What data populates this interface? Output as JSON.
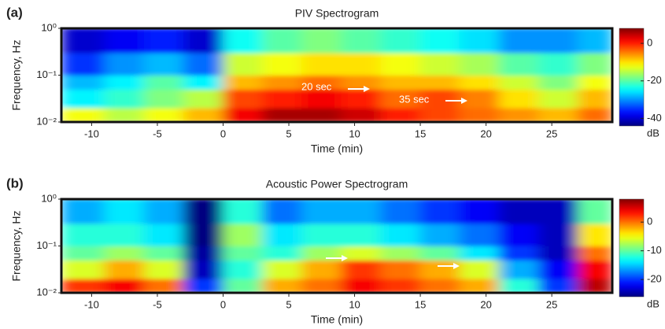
{
  "chart_data": [
    {
      "type": "heatmap",
      "panel_label": "(a)",
      "title": "PIV Spectrogram",
      "x_label": "Time (min)",
      "y_label": "Frequency, Hz",
      "xlim": [
        -12.3,
        29.6
      ],
      "xticks": [
        -10,
        -5,
        0,
        5,
        10,
        15,
        20,
        25
      ],
      "ylim": [
        0.01,
        1
      ],
      "y_scale": "log",
      "yticks": [
        {
          "value": 0.01,
          "label": "10⁻²"
        },
        {
          "value": 0.1,
          "label": "10⁻¹"
        },
        {
          "value": 1,
          "label": "10⁰"
        }
      ],
      "time_bins": [
        -12.3,
        -9,
        -6,
        -3,
        0,
        3,
        6,
        9,
        12,
        15,
        18,
        21,
        24,
        27,
        29.6
      ],
      "freq_bins": [
        0.01,
        0.02,
        0.05,
        0.1,
        0.3,
        1
      ],
      "z": [
        [
          -12,
          -15,
          -12,
          -8,
          2,
          6,
          6,
          4,
          0,
          -2,
          -4,
          -6,
          -8,
          -4
        ],
        [
          -25,
          -22,
          -18,
          -15,
          -2,
          0,
          2,
          0,
          -4,
          -2,
          -5,
          -10,
          -14,
          -8
        ],
        [
          -28,
          -25,
          -20,
          -25,
          -8,
          -6,
          -4,
          -6,
          -8,
          -8,
          -10,
          -14,
          -18,
          -12
        ],
        [
          -35,
          -30,
          -28,
          -32,
          -14,
          -12,
          -10,
          -10,
          -12,
          -14,
          -16,
          -20,
          -22,
          -18
        ],
        [
          -40,
          -38,
          -36,
          -40,
          -24,
          -20,
          -18,
          -20,
          -22,
          -24,
          -26,
          -30,
          -30,
          -28
        ]
      ],
      "colormap": "jet",
      "clim": [
        -44,
        8
      ],
      "colorbar_ticks": [
        0,
        -20,
        -40
      ],
      "colorbar_label": "dB",
      "annotations": [
        "20 sec",
        "35 sec"
      ]
    },
    {
      "type": "heatmap",
      "panel_label": "(b)",
      "title": "Acoustic Power Spectrogram",
      "x_label": "Time (min)",
      "y_label": "Frequency, Hz",
      "xlim": [
        -12.3,
        29.6
      ],
      "xticks": [
        -10,
        -5,
        0,
        5,
        10,
        15,
        20,
        25
      ],
      "ylim": [
        0.01,
        1
      ],
      "y_scale": "log",
      "yticks": [
        {
          "value": 0.01,
          "label": "10⁻²"
        },
        {
          "value": 0.1,
          "label": "10⁻¹"
        },
        {
          "value": 1,
          "label": "10⁰"
        }
      ],
      "time_bins": [
        -12.3,
        -9,
        -6,
        -3,
        0,
        3,
        6,
        9,
        12,
        15,
        18,
        21,
        24,
        27,
        29.6
      ],
      "freq_bins": [
        0.01,
        0.02,
        0.05,
        0.1,
        0.3,
        1
      ],
      "z": [
        [
          2,
          4,
          0,
          -20,
          -10,
          -2,
          0,
          4,
          2,
          0,
          -2,
          -12,
          -20,
          6
        ],
        [
          -6,
          -2,
          -6,
          -24,
          -12,
          -6,
          -2,
          2,
          0,
          -2,
          -6,
          -16,
          -22,
          4
        ],
        [
          -10,
          -8,
          -10,
          -25,
          -10,
          -12,
          -8,
          -6,
          -8,
          -10,
          -14,
          -20,
          -24,
          0
        ],
        [
          -12,
          -12,
          -14,
          -26,
          -8,
          -14,
          -12,
          -12,
          -14,
          -16,
          -18,
          -22,
          -24,
          -4
        ],
        [
          -16,
          -14,
          -16,
          -26,
          -12,
          -18,
          -16,
          -16,
          -18,
          -20,
          -22,
          -24,
          -24,
          -10
        ]
      ],
      "colormap": "jet",
      "clim": [
        -26,
        8
      ],
      "colorbar_ticks": [
        0,
        -10,
        -20
      ],
      "colorbar_label": "dB"
    }
  ]
}
